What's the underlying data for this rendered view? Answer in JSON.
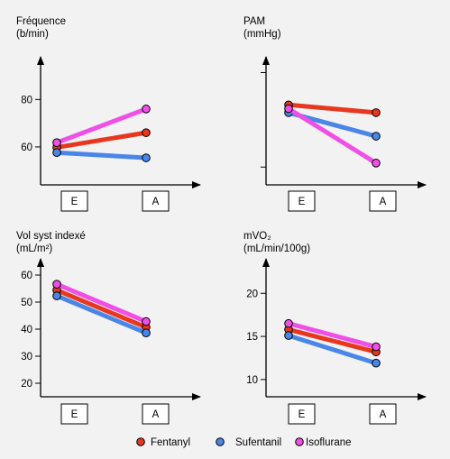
{
  "colors": {
    "background": "#f2f2f2",
    "axis": "#000000",
    "fentanyl": "#e8371f",
    "sufentanil": "#4a86e8",
    "isoflurane": "#f04fe6"
  },
  "legend": {
    "placement": "bottom",
    "items": [
      {
        "name": "Fentanyl",
        "color": "#e8371f"
      },
      {
        "name": "Sufentanil",
        "color": "#4a86e8"
      },
      {
        "name": "Isoflurane",
        "color": "#f04fe6"
      }
    ]
  },
  "chart_data": [
    {
      "type": "line",
      "title_lines": [
        "Fréquence",
        "(b/min)"
      ],
      "categories": [
        "E",
        "A"
      ],
      "ylim": [
        44,
        98
      ],
      "yticks": [
        {
          "value": 60,
          "label": "60"
        },
        {
          "value": 80,
          "label": "80"
        }
      ],
      "grid": false,
      "series": [
        {
          "name": "Fentanyl",
          "values": [
            59.8,
            66
          ]
        },
        {
          "name": "Sufentanil",
          "values": [
            57.6,
            55.4
          ]
        },
        {
          "name": "Isoflurane",
          "values": [
            61.8,
            76
          ]
        }
      ]
    },
    {
      "type": "line",
      "title_lines": [
        "PAM",
        "(mmHg)"
      ],
      "categories": [
        "E",
        "A"
      ],
      "ylim": [
        0,
        100
      ],
      "yticks": [
        {
          "value": 13.9,
          "label": ""
        },
        {
          "value": 87.7,
          "label": ""
        }
      ],
      "grid": false,
      "series": [
        {
          "name": "Fentanyl",
          "values": [
            62.5,
            56.4
          ]
        },
        {
          "name": "Sufentanil",
          "values": [
            56.4,
            38.0
          ]
        },
        {
          "name": "Isoflurane",
          "values": [
            59.5,
            17.0
          ]
        }
      ]
    },
    {
      "type": "line",
      "title_lines": [
        "Vol syst indexé",
        "(mL/m²)"
      ],
      "categories": [
        "E",
        "A"
      ],
      "ylim": [
        15,
        66
      ],
      "yticks": [
        {
          "value": 20,
          "label": "20"
        },
        {
          "value": 30,
          "label": "30"
        },
        {
          "value": 40,
          "label": "40"
        },
        {
          "value": 50,
          "label": "50"
        },
        {
          "value": 60,
          "label": "60"
        }
      ],
      "grid": false,
      "series": [
        {
          "name": "Fentanyl",
          "values": [
            54.4,
            40.7
          ]
        },
        {
          "name": "Sufentanil",
          "values": [
            52.3,
            38.6
          ]
        },
        {
          "name": "Isoflurane",
          "values": [
            56.6,
            42.8
          ]
        }
      ]
    },
    {
      "type": "line",
      "title_lines": [
        "mVO₂",
        "(mL/min/100g)"
      ],
      "categories": [
        "E",
        "A"
      ],
      "ylim": [
        8,
        24
      ],
      "yticks": [
        {
          "value": 10,
          "label": "10"
        },
        {
          "value": 15,
          "label": "15"
        },
        {
          "value": 20,
          "label": "20"
        }
      ],
      "grid": false,
      "series": [
        {
          "name": "Fentanyl",
          "values": [
            15.8,
            13.2
          ]
        },
        {
          "name": "Sufentanil",
          "values": [
            15.1,
            11.9
          ]
        },
        {
          "name": "Isoflurane",
          "values": [
            16.5,
            13.8
          ]
        }
      ]
    }
  ]
}
